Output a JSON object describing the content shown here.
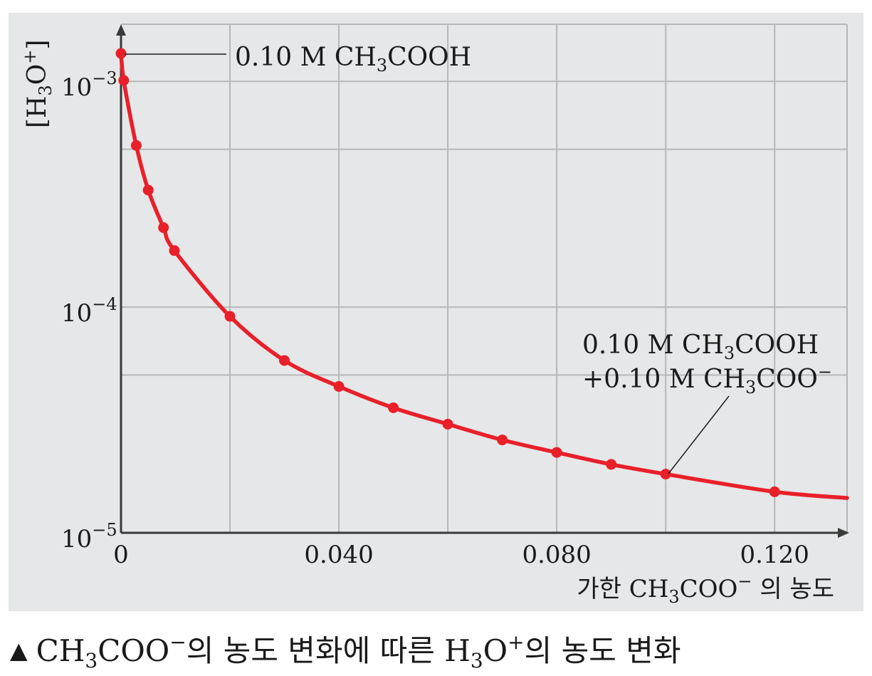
{
  "chart_data": {
    "type": "line",
    "title": "",
    "caption": {
      "marker": "▲",
      "part1": "CH",
      "sub1": "3",
      "part2": "COO",
      "sup1": "−",
      "part3": "의 농도 변화에 따른 H",
      "sub2": "3",
      "part4": "O",
      "sup2": "+",
      "part5": "의 농도 변화"
    },
    "ylabel": {
      "open": "[H",
      "sub": "3",
      "mid": "O",
      "sup": "+",
      "close": "]"
    },
    "xlabel": {
      "prefix": "가한 CH",
      "sub": "3",
      "mid": "COO",
      "sup": "−",
      "suffix": " 의 농도"
    },
    "x_ticks": [
      "0",
      "0.040",
      "0.080",
      "0.120"
    ],
    "x_tick_values": [
      0,
      0.04,
      0.08,
      0.12
    ],
    "y_ticks": [
      {
        "base": "10",
        "exp": "−3",
        "value": 0.001
      },
      {
        "base": "10",
        "exp": "−4",
        "value": 0.0001
      },
      {
        "base": "10",
        "exp": "−5",
        "value": 1e-05
      }
    ],
    "y_scale": "log",
    "xlim": [
      0,
      0.1333
    ],
    "ylim": [
      1e-05,
      0.00133
    ],
    "grid": true,
    "line_color": "#e8202a",
    "background_color": "#e6e7e8",
    "grid_color": "#b5b7b9",
    "series": [
      {
        "x": [
          0,
          0.0005,
          0.0028,
          0.005,
          0.0078,
          0.0098,
          0.02,
          0.03,
          0.04,
          0.05,
          0.06,
          0.07,
          0.08,
          0.09,
          0.1,
          0.12
        ],
        "y": [
          0.00133,
          0.00101,
          0.00052,
          0.00033,
          0.000225,
          0.000178,
          9.1e-05,
          5.8e-05,
          4.45e-05,
          3.58e-05,
          3.03e-05,
          2.58e-05,
          2.27e-05,
          2.01e-05,
          1.82e-05,
          1.52e-05
        ]
      }
    ],
    "annotations": [
      {
        "text1": "0.10 M  CH",
        "sub": "3",
        "text2": "COOH"
      },
      {
        "line1_text1": "0.10 M  CH",
        "line1_sub": "3",
        "line1_text2": "COOH",
        "line2_text1": "+0.10 M  CH",
        "line2_sub": "3",
        "line2_text2": "COO",
        "line2_sup": "−"
      }
    ]
  }
}
